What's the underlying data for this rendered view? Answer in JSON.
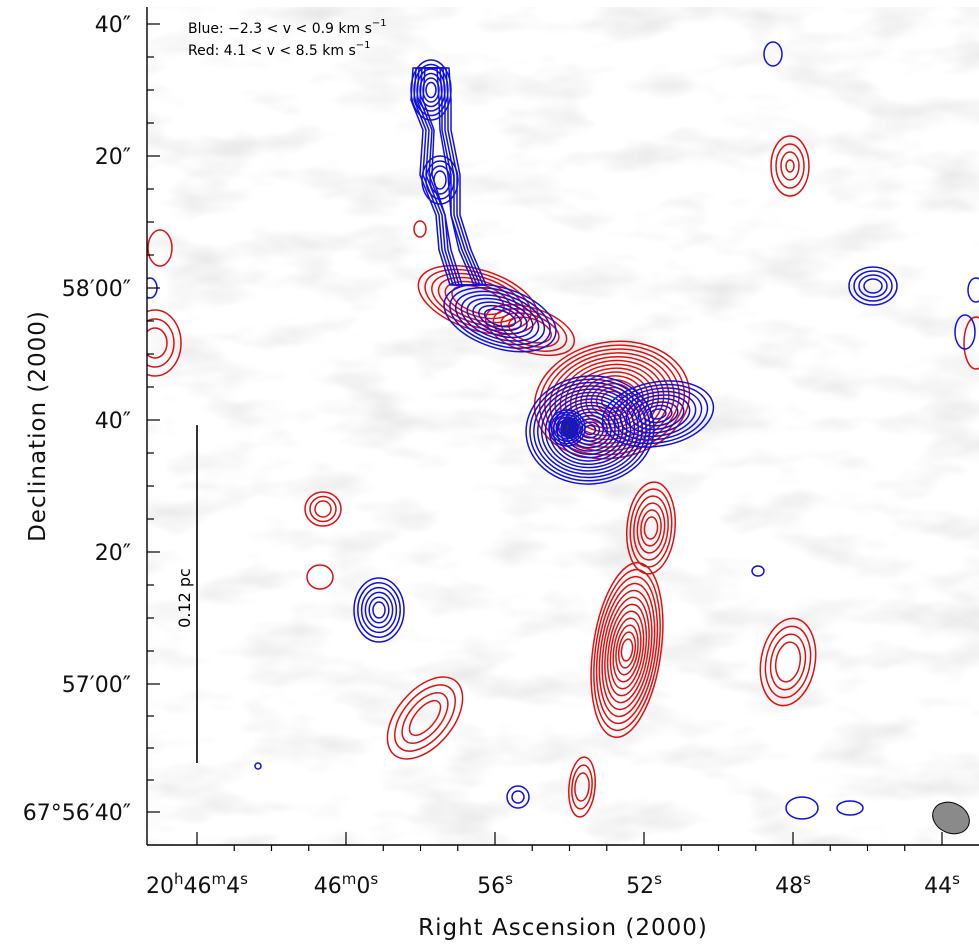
{
  "chart_data": {
    "type": "contour",
    "xlabel": "Right Ascension (2000)",
    "ylabel": "Declination (2000)",
    "x_ticks": [
      {
        "pre": "20",
        "sup1": "h",
        "mid": "46",
        "sup2": "m",
        "post": "4",
        "sup3": "s"
      },
      {
        "pre": "",
        "sup1": "",
        "mid": "46",
        "sup2": "m",
        "post": "0",
        "sup3": "s"
      },
      {
        "pre": "",
        "sup1": "",
        "mid": "",
        "sup2": "",
        "post": "56",
        "sup3": "s"
      },
      {
        "pre": "",
        "sup1": "",
        "mid": "",
        "sup2": "",
        "post": "52",
        "sup3": "s"
      },
      {
        "pre": "",
        "sup1": "",
        "mid": "",
        "sup2": "",
        "post": "48",
        "sup3": "s"
      },
      {
        "pre": "",
        "sup1": "",
        "mid": "",
        "sup2": "",
        "post": "44",
        "sup3": "s"
      }
    ],
    "y_ticks": [
      "40″",
      "20″",
      "58′00″",
      "40″",
      "20″",
      "57′00″",
      "67°56′40″"
    ],
    "legend": [
      {
        "series": "Blue",
        "color": "#1010e0",
        "text": "Blue: −2.3 < v < 0.9 km s",
        "sup": "−1"
      },
      {
        "series": "Red",
        "color": "#e01010",
        "text": "Red: 4.1 < v < 8.5 km s",
        "sup": "−1"
      }
    ],
    "scale_bar_label": "0.12 pc",
    "background": "grayscale noise",
    "beam": "gray-filled-ellipse"
  }
}
